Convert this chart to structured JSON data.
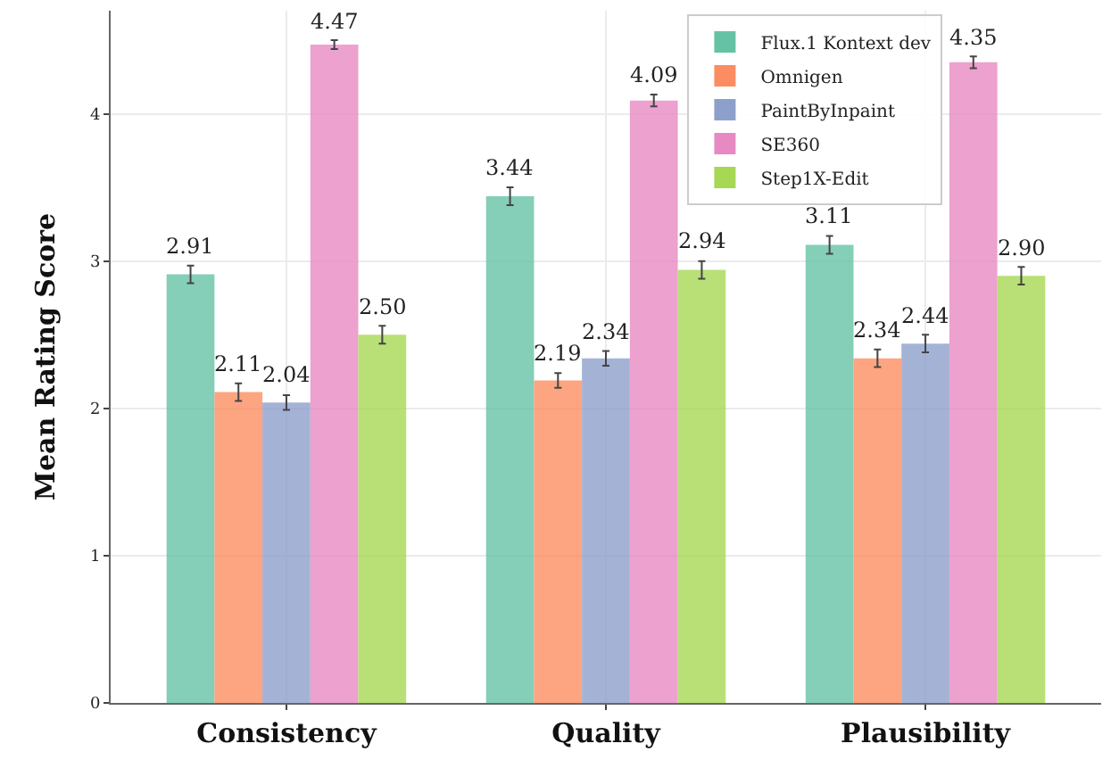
{
  "chart_data": {
    "type": "bar",
    "ylabel": "Mean Rating Score",
    "categories": [
      "Consistency",
      "Quality",
      "Plausibility"
    ],
    "series": [
      {
        "name": "Flux.1 Kontext dev",
        "color": "#66c2a5",
        "values": [
          2.91,
          3.44,
          3.11
        ],
        "errors": [
          0.06,
          0.06,
          0.06
        ],
        "value_labels": [
          "2.91",
          "3.44",
          "3.11"
        ]
      },
      {
        "name": "Omnigen",
        "color": "#fc8d62",
        "values": [
          2.11,
          2.19,
          2.34
        ],
        "errors": [
          0.06,
          0.05,
          0.06
        ],
        "value_labels": [
          "2.11",
          "2.19",
          "2.34"
        ]
      },
      {
        "name": "PaintByInpaint",
        "color": "#8da0cb",
        "values": [
          2.04,
          2.34,
          2.44
        ],
        "errors": [
          0.05,
          0.05,
          0.06
        ],
        "value_labels": [
          "2.04",
          "2.34",
          "2.44"
        ]
      },
      {
        "name": "SE360",
        "color": "#e78ac3",
        "values": [
          4.47,
          4.09,
          4.35
        ],
        "errors": [
          0.03,
          0.04,
          0.04
        ],
        "value_labels": [
          "4.47",
          "4.09",
          "4.35"
        ]
      },
      {
        "name": "Step1X-Edit",
        "color": "#a6d854",
        "values": [
          2.5,
          2.94,
          2.9
        ],
        "errors": [
          0.06,
          0.06,
          0.06
        ],
        "value_labels": [
          "2.50",
          "2.94",
          "2.90"
        ]
      }
    ],
    "ylim": [
      0,
      4.7
    ],
    "yticks": [
      0,
      1,
      2,
      3,
      4
    ],
    "grid": true,
    "legend": "top right"
  }
}
